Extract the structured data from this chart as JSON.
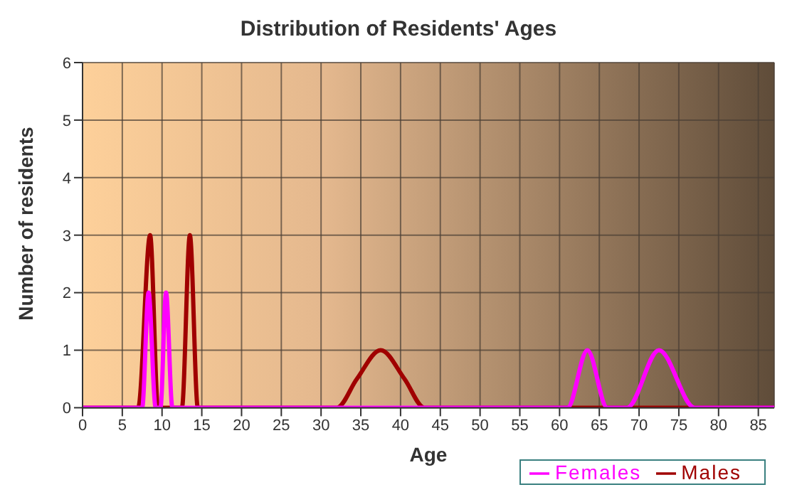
{
  "chart_data": {
    "type": "line",
    "title": "Distribution of Residents' Ages",
    "xlabel": "Age",
    "ylabel": "Number of residents",
    "xlim": [
      0,
      87
    ],
    "xticks": [
      0,
      5,
      10,
      15,
      20,
      25,
      30,
      35,
      40,
      45,
      50,
      55,
      60,
      65,
      70,
      75,
      80,
      85
    ],
    "ylim": [
      0,
      6
    ],
    "yticks": [
      0,
      1,
      2,
      3,
      4,
      5,
      6
    ],
    "grid": true,
    "legend": "bottom right",
    "marker": "none",
    "line_style": "solid",
    "series": [
      {
        "name": "Males",
        "color": "#a00000",
        "x": [
          0,
          7,
          8.5,
          9.5,
          12.5,
          13.5,
          14.5,
          32,
          34.5,
          37.5,
          40.5,
          43,
          87
        ],
        "values": [
          0,
          0,
          3,
          0,
          0,
          3,
          0,
          0,
          0.5,
          1,
          0.5,
          0,
          0
        ]
      },
      {
        "name": "Females",
        "color": "#ff00ff",
        "x": [
          0,
          7.5,
          8.3,
          9.2,
          9.8,
          10.5,
          11.3,
          61,
          63.5,
          66,
          68.5,
          72.5,
          77,
          87
        ],
        "values": [
          0,
          0,
          2,
          0,
          0,
          2,
          0,
          0,
          1,
          0,
          0,
          1,
          0,
          0
        ]
      }
    ]
  }
}
